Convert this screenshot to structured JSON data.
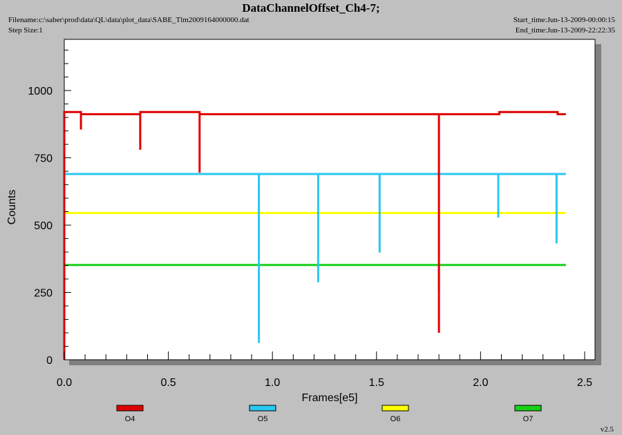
{
  "header": {
    "title": "DataChannelOffset_Ch4-7;",
    "filename": "Filename:c:\\saber\\prod\\data\\QL\\data\\plot_data\\SABE_Tlm2009164000000.dat",
    "step_size": "Step Size:1",
    "start_time": "Start_time:Jun-13-2009-00:00:15",
    "end_time": "End_time:Jun-13-2009-22:22:35"
  },
  "version": "v2.5",
  "chart_data": {
    "type": "line",
    "xlabel": "Frames[e5]",
    "ylabel": "Counts",
    "xlim": [
      0,
      2.55
    ],
    "ylim": [
      0,
      1190
    ],
    "x_ticks": [
      "0.0",
      "0.5",
      "1.0",
      "1.5",
      "2.0",
      "2.5"
    ],
    "y_ticks": [
      "0",
      "250",
      "500",
      "750",
      "1000"
    ],
    "grid": false,
    "legend_position": "bottom",
    "series": [
      {
        "name": "O4",
        "color": "#e00000",
        "x": [
          0.0,
          0.0,
          0.08,
          0.08,
          0.08,
          0.365,
          0.365,
          0.365,
          0.65,
          0.65,
          0.65,
          1.8,
          1.8,
          1.8,
          2.09,
          2.09,
          2.37,
          2.37,
          2.41
        ],
        "y": [
          0,
          920,
          920,
          855,
          912,
          912,
          780,
          920,
          920,
          695,
          912,
          912,
          100,
          912,
          912,
          920,
          920,
          912,
          912
        ]
      },
      {
        "name": "O5",
        "color": "#28c8f0",
        "x": [
          0.0,
          0.935,
          0.935,
          0.935,
          1.22,
          1.22,
          1.22,
          1.515,
          1.515,
          1.515,
          2.085,
          2.085,
          2.085,
          2.365,
          2.365,
          2.365,
          2.41
        ],
        "y": [
          690,
          690,
          62,
          690,
          690,
          288,
          690,
          690,
          398,
          690,
          690,
          528,
          690,
          690,
          432,
          690,
          690
        ]
      },
      {
        "name": "O6",
        "color": "#ffff00",
        "x": [
          0.0,
          2.41
        ],
        "y": [
          545,
          545
        ]
      },
      {
        "name": "O7",
        "color": "#18d018",
        "x": [
          0.0,
          0.0,
          1.8,
          1.8,
          1.8,
          2.41
        ],
        "y": [
          0,
          352,
          352,
          255,
          352,
          352
        ]
      }
    ]
  }
}
